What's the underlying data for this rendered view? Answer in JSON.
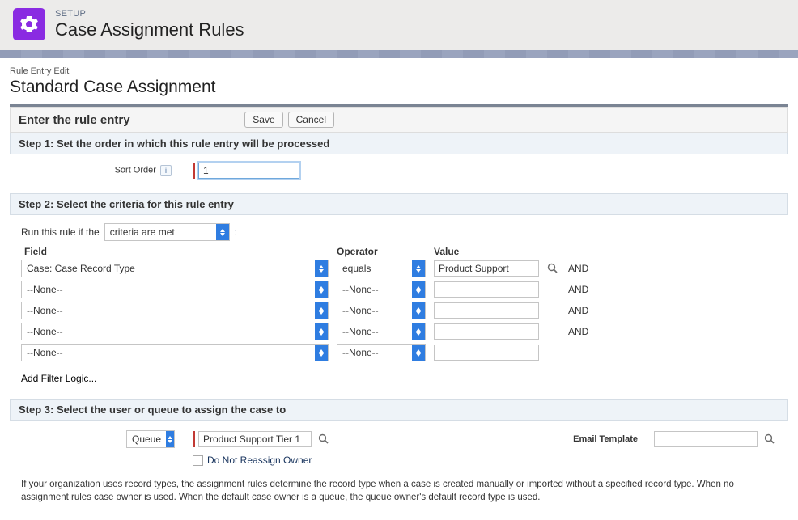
{
  "header": {
    "eyebrow": "SETUP",
    "title": "Case Assignment Rules"
  },
  "page": {
    "subtitle": "Rule Entry Edit",
    "title": "Standard Case Assignment"
  },
  "ruleEntry": {
    "heading": "Enter the rule entry",
    "saveLabel": "Save",
    "cancelLabel": "Cancel"
  },
  "step1": {
    "header": "Step 1: Set the order in which this rule entry will be processed",
    "sortOrderLabel": "Sort Order",
    "sortOrderValue": "1"
  },
  "step2": {
    "header": "Step 2: Select the criteria for this rule entry",
    "runRulePrefix": "Run this rule if the",
    "conditionSelected": "criteria are met",
    "colon": ":",
    "columns": {
      "field": "Field",
      "operator": "Operator",
      "value": "Value"
    },
    "rows": [
      {
        "field": "Case: Case Record Type",
        "operator": "equals",
        "value": "Product Support",
        "lookup": true,
        "and": "AND"
      },
      {
        "field": "--None--",
        "operator": "--None--",
        "value": "",
        "lookup": false,
        "and": "AND"
      },
      {
        "field": "--None--",
        "operator": "--None--",
        "value": "",
        "lookup": false,
        "and": "AND"
      },
      {
        "field": "--None--",
        "operator": "--None--",
        "value": "",
        "lookup": false,
        "and": "AND"
      },
      {
        "field": "--None--",
        "operator": "--None--",
        "value": "",
        "lookup": false,
        "and": ""
      }
    ],
    "filterLogicLink": "Add Filter Logic..."
  },
  "step3": {
    "header": "Step 3: Select the user or queue to assign the case to",
    "targetType": "Queue",
    "targetName": "Product Support Tier 1",
    "doNotReassignLabel": "Do Not Reassign Owner",
    "emailTemplateLabel": "Email Template",
    "emailTemplateValue": ""
  },
  "note": "If your organization uses record types, the assignment rules determine the record type when a case is created manually or imported without a specified record type. When no assignment rules case owner is used. When the default case owner is a queue, the queue owner's default record type is used."
}
